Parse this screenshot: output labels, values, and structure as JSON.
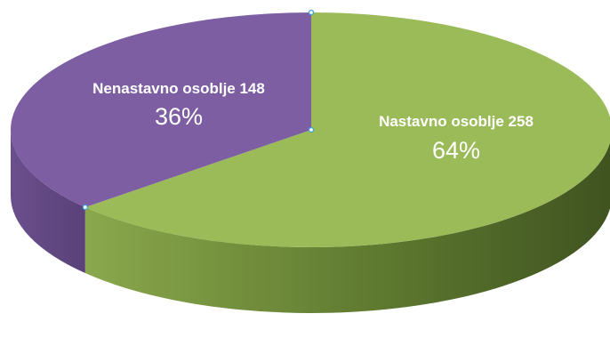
{
  "chart_data": {
    "type": "pie",
    "style": "3d",
    "title": "",
    "legend": "none",
    "slices": [
      {
        "category": "Nastavno osoblje",
        "value": 258,
        "percent": "64%",
        "label": "Nastavno osoblje 258",
        "color": "#9bbb59",
        "side_color": "#5f7a30"
      },
      {
        "category": "Nenastavno osoblje",
        "value": 148,
        "percent": "36%",
        "label": "Nenastavno osoblje 148",
        "color": "#7d5ea3",
        "side_color": "#5e447d"
      }
    ],
    "selection_handle_color": "#3aa1e0"
  }
}
